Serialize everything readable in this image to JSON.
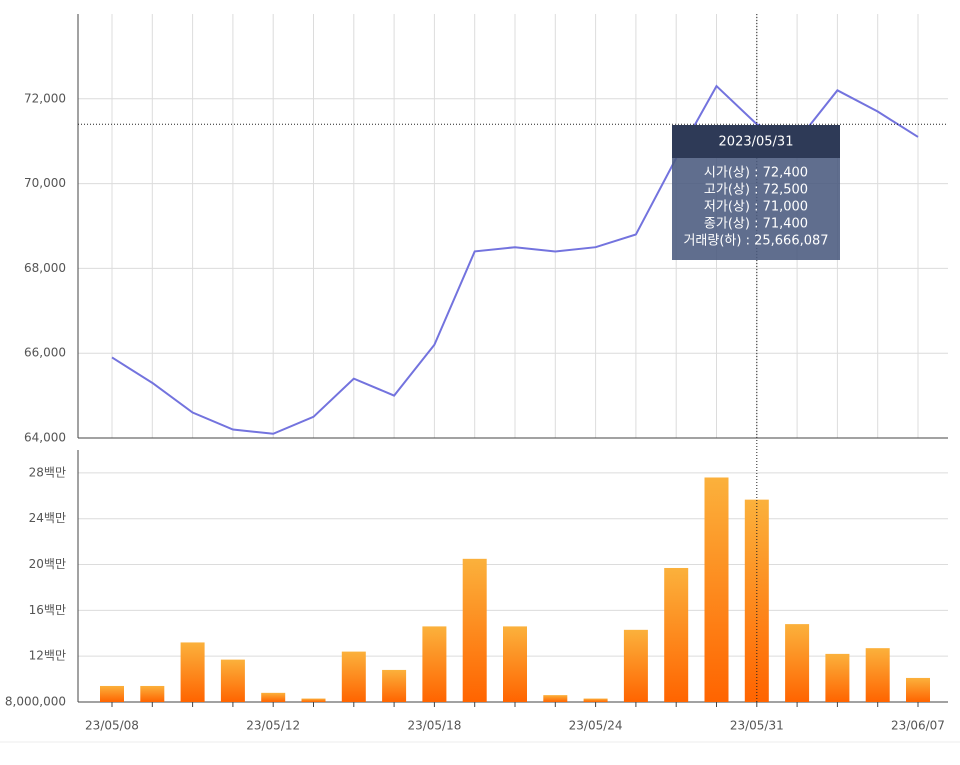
{
  "chart_data": [
    {
      "type": "line",
      "color": "#7373de",
      "values": [
        65900,
        65300,
        64600,
        64200,
        64100,
        64500,
        65400,
        65000,
        66200,
        68400,
        68500,
        68400,
        68500,
        68800,
        70600,
        72300,
        71400,
        71000,
        72200,
        71700,
        71100
      ],
      "ylim": [
        64000,
        74000
      ],
      "yticks": [
        {
          "value": 64000,
          "label": "64,000"
        },
        {
          "value": 66000,
          "label": "66,000"
        },
        {
          "value": 68000,
          "label": "68,000"
        },
        {
          "value": 70000,
          "label": "70,000"
        },
        {
          "value": 72000,
          "label": "72,000"
        }
      ],
      "grid": true
    },
    {
      "type": "bar",
      "color": [
        "#fbb13c",
        "#ff6400"
      ],
      "categories": [
        "23/05/08",
        null,
        null,
        null,
        "23/05/12",
        null,
        null,
        null,
        "23/05/18",
        null,
        null,
        null,
        "23/05/24",
        null,
        null,
        null,
        "23/05/31",
        null,
        null,
        null,
        "23/06/07"
      ],
      "values": [
        9400000,
        9400000,
        13200000,
        11700000,
        8800000,
        8300000,
        12400000,
        10800000,
        14600000,
        20500000,
        14600000,
        8600000,
        8300000,
        14300000,
        19700000,
        27600000,
        25666087,
        14800000,
        12200000,
        12700000,
        10100000
      ],
      "ylim": [
        8000000,
        30000000
      ],
      "yticks": [
        {
          "value": 8000000,
          "label": "8,000,000"
        },
        {
          "value": 12000000,
          "label": "12백만"
        },
        {
          "value": 16000000,
          "label": "16백만"
        },
        {
          "value": 20000000,
          "label": "20백만"
        },
        {
          "value": 24000000,
          "label": "24백만"
        },
        {
          "value": 28000000,
          "label": "28백만"
        }
      ],
      "grid": true
    }
  ],
  "tooltip": {
    "title": "2023/05/31",
    "lines": [
      "시가(상) : 72,400",
      "고가(상) : 72,500",
      "저가(상) : 71,000",
      "종가(상) : 71,400",
      "거래량(하) : 25,666,087"
    ]
  }
}
